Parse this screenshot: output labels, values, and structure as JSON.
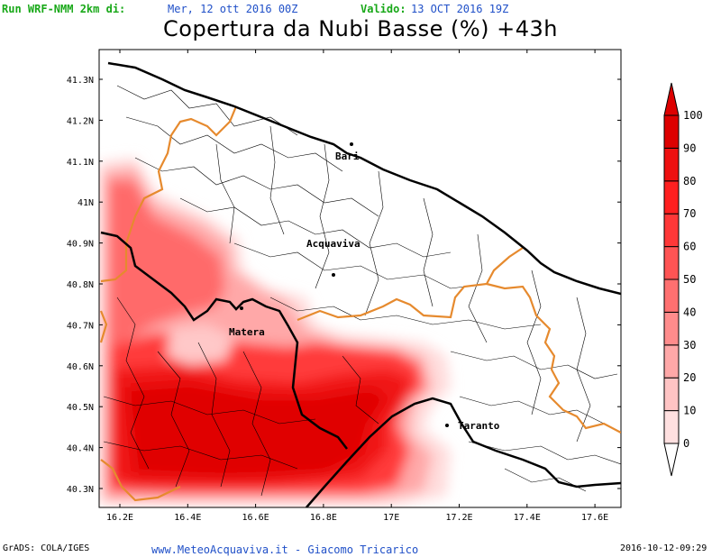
{
  "header": {
    "run_label": "Run WRF-NMM 2km di:",
    "run_date": "Mer, 12 ott 2016 00Z",
    "valid_label": "Valido:",
    "valid_date": "13 OCT 2016 19Z"
  },
  "title": "Copertura da Nubi Basse (%) +43h",
  "axes": {
    "lat_ticks": [
      "41.3N",
      "41.2N",
      "41.1N",
      "41N",
      "40.9N",
      "40.8N",
      "40.7N",
      "40.6N",
      "40.5N",
      "40.4N",
      "40.3N"
    ],
    "lon_ticks": [
      "16.2E",
      "16.4E",
      "16.6E",
      "16.8E",
      "17E",
      "17.2E",
      "17.4E",
      "17.6E"
    ]
  },
  "cities": [
    "Bari",
    "Acquaviva",
    "Matera",
    "Taranto"
  ],
  "legend": {
    "labels": [
      "0",
      "10",
      "20",
      "30",
      "40",
      "50",
      "60",
      "70",
      "80",
      "90",
      "100"
    ],
    "colors": [
      "#ffffff",
      "#ffe0e0",
      "#ffc4c4",
      "#ffa8a8",
      "#ff8c8c",
      "#ff7070",
      "#ff5454",
      "#ff3838",
      "#ff2020",
      "#ee1010",
      "#dd0000"
    ]
  },
  "footer": {
    "grads": "GrADS: COLA/IGES",
    "credit": "www.MeteoAcquaviva.it  -  Giacomo Tricarico",
    "timestamp": "2016-10-12-09:29"
  }
}
